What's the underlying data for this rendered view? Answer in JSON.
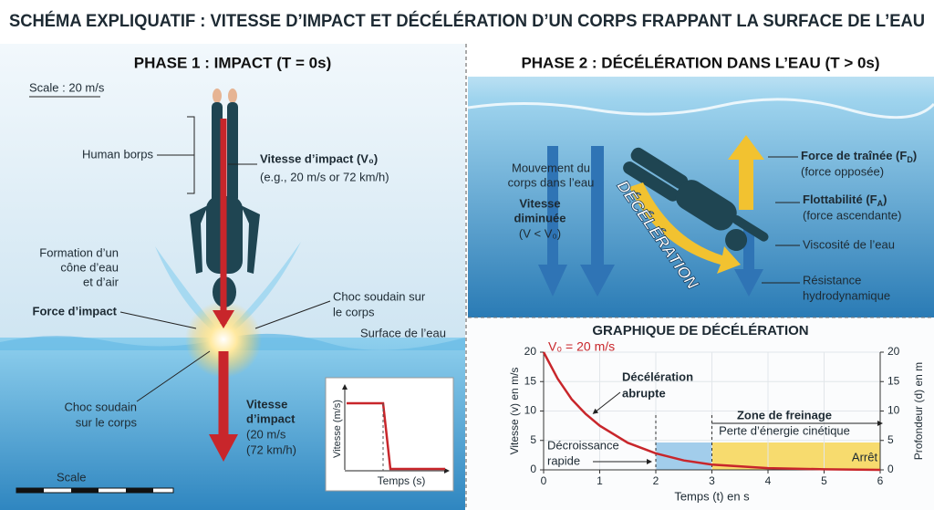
{
  "title": "SCHÉMA EXPLIQUATIF : VITESSE D’IMPACT ET DÉCÉLÉRATION D’UN CORPS FRAPPANT LA SURFACE DE L’EAU",
  "phase1": {
    "title": "PHASE 1 : IMPACT (T = 0s)",
    "scale_top": "Scale : 20 m/s",
    "body_label": "Human borps",
    "impact_speed": {
      "title": "Vitesse d’impact (V₀)",
      "detail": "(e.g., 20 m/s or 72 km/h)"
    },
    "cone_label": [
      "Formation d’un",
      "cône d’eau",
      "et d’air"
    ],
    "force_label": "Force d’impact",
    "shock_right": [
      "Choc soudain sur",
      "le corps"
    ],
    "surface_label": "Surface de l’eau",
    "shock_left": [
      "Choc soudain",
      "sur le corps"
    ],
    "impact_bottom": [
      "Vitesse",
      "d’impact",
      "(20 m/s",
      "(72 km/h)"
    ],
    "inset": {
      "y_label": "Vitesse (m/s)",
      "x_label": "Temps (s)"
    },
    "scale_bottom": "Scale"
  },
  "phase2": {
    "title": "PHASE 2 : DÉCÉLÉRATION DANS L’EAU (T > 0s)",
    "movement": [
      "Mouvement du",
      "corps dans l’eau"
    ],
    "speed": [
      "Vitesse",
      "diminuée",
      "(V < V₀)"
    ],
    "deceleration": "DÉCÉLÉRATION",
    "drag": {
      "title": [
        "Force de traînée (F",
        "D",
        ")"
      ],
      "detail": "(force opposée)"
    },
    "buoyancy": {
      "title": [
        "Flottabilité (F",
        "A",
        ")"
      ],
      "detail": "(force ascendante)"
    },
    "viscosity": "Viscosité de l’eau",
    "resistance": [
      "Résistance",
      "hydrodynamique"
    ]
  },
  "chart_data": {
    "type": "line",
    "title": "GRAPHIQUE DE DÉCÉLÉRATION",
    "x_label": "Temps (t) en s",
    "y_label": "Vitesse (v) en m/s",
    "y2_label": "Profondeur (d) en m",
    "x": [
      0,
      0.25,
      0.5,
      0.75,
      1,
      1.5,
      2,
      2.5,
      3,
      4,
      5,
      6
    ],
    "values": [
      20,
      15.5,
      12,
      9.5,
      7.5,
      4.6,
      2.8,
      1.6,
      0.9,
      0.3,
      0.1,
      0
    ],
    "color": "#c8262b",
    "xlim": [
      0,
      6
    ],
    "ylim": [
      0,
      20
    ],
    "y2lim": [
      0,
      20
    ],
    "xticks": [
      0,
      1,
      2,
      3,
      4,
      5,
      6
    ],
    "yticks": [
      0,
      5,
      10,
      15,
      20
    ],
    "y2ticks": [
      0,
      5,
      10,
      15,
      20
    ],
    "grid": true,
    "zones": [
      {
        "from": 2,
        "to": 3,
        "color": "#8cc0e6"
      },
      {
        "from": 3,
        "to": 6,
        "color": "#f6d24a"
      }
    ],
    "annotations": {
      "v0": "V₀ = 20 m/s",
      "abrupt": [
        "Décélération",
        "abrupte"
      ],
      "zone": [
        "Zone de freinage",
        "Perte d’énergie cinétique"
      ],
      "rapid": [
        "Décroissance",
        "rapide"
      ],
      "stop": "Arrêt"
    }
  }
}
